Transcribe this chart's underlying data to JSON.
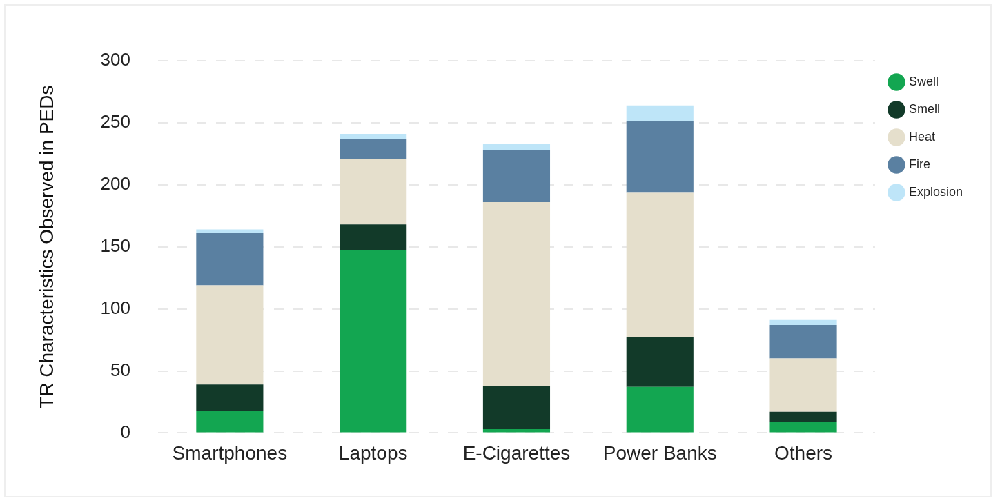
{
  "chart_data": {
    "type": "bar",
    "ylabel": "TR Characteristics Observed in PEDs",
    "categories": [
      "Smartphones",
      "Laptops",
      "E-Cigarettes",
      "Power Banks",
      "Others"
    ],
    "stacked": true,
    "series": [
      {
        "name": "Swell",
        "color": "#13a651",
        "values": [
          18,
          147,
          3,
          37,
          9
        ]
      },
      {
        "name": "Smell",
        "color": "#123a29",
        "values": [
          21,
          21,
          35,
          40,
          8
        ]
      },
      {
        "name": "Heat",
        "color": "#e5dfcc",
        "values": [
          80,
          53,
          148,
          117,
          43
        ]
      },
      {
        "name": "Fire",
        "color": "#5a80a1",
        "values": [
          42,
          16,
          42,
          57,
          27
        ]
      },
      {
        "name": "Explosion",
        "color": "#bee5f8",
        "values": [
          3,
          4,
          5,
          13,
          4
        ]
      }
    ],
    "ylim": [
      0,
      300
    ],
    "yticks": [
      0,
      50,
      100,
      150,
      200,
      250,
      300
    ],
    "grid": "y",
    "legend": "top right",
    "marker": "circle"
  }
}
